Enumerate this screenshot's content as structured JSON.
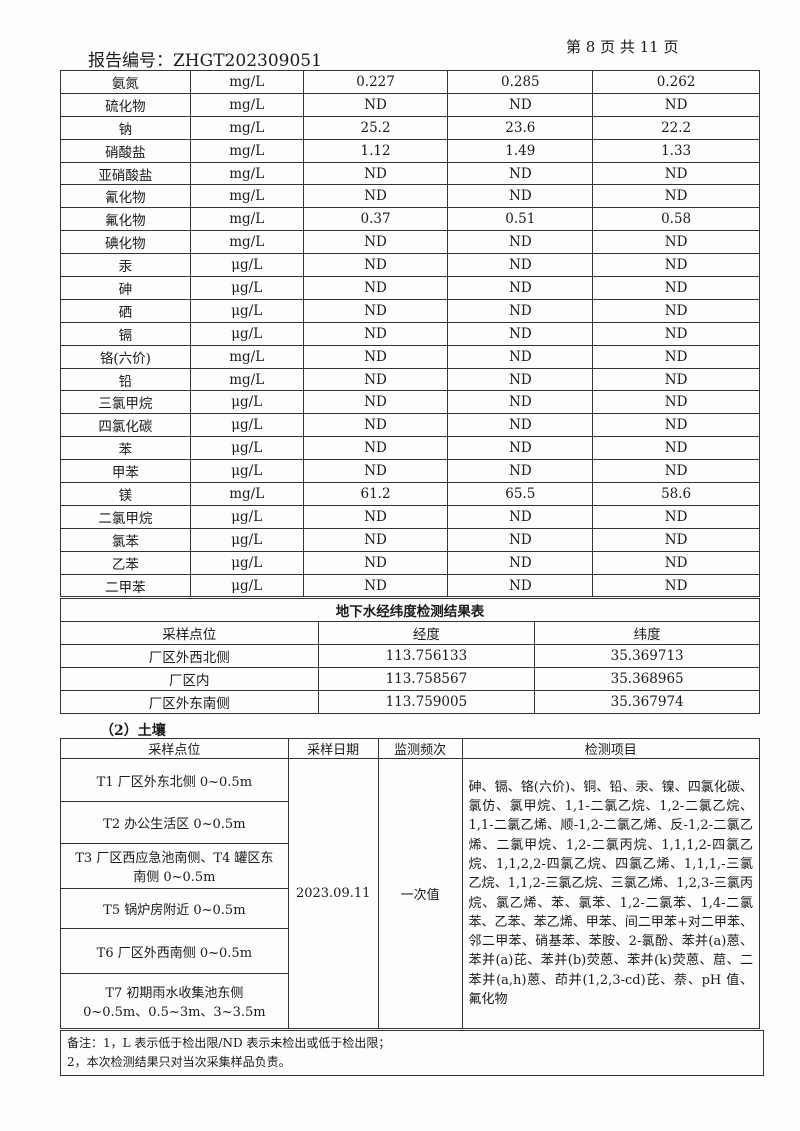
{
  "header": {
    "report_no": "报告编号：ZHGT202309051",
    "page": "第 8 页 共 11 页"
  },
  "water_rows": [
    [
      "氨氮",
      "mg/L",
      "0.227",
      "0.285",
      "0.262"
    ],
    [
      "硫化物",
      "mg/L",
      "ND",
      "ND",
      "ND"
    ],
    [
      "钠",
      "mg/L",
      "25.2",
      "23.6",
      "22.2"
    ],
    [
      "硝酸盐",
      "mg/L",
      "1.12",
      "1.49",
      "1.33"
    ],
    [
      "亚硝酸盐",
      "mg/L",
      "ND",
      "ND",
      "ND"
    ],
    [
      "氰化物",
      "mg/L",
      "ND",
      "ND",
      "ND"
    ],
    [
      "氟化物",
      "mg/L",
      "0.37",
      "0.51",
      "0.58"
    ],
    [
      "碘化物",
      "mg/L",
      "ND",
      "ND",
      "ND"
    ],
    [
      "汞",
      "μg/L",
      "ND",
      "ND",
      "ND"
    ],
    [
      "砷",
      "μg/L",
      "ND",
      "ND",
      "ND"
    ],
    [
      "硒",
      "μg/L",
      "ND",
      "ND",
      "ND"
    ],
    [
      "镉",
      "μg/L",
      "ND",
      "ND",
      "ND"
    ],
    [
      "铬(六价)",
      "mg/L",
      "ND",
      "ND",
      "ND"
    ],
    [
      "铅",
      "mg/L",
      "ND",
      "ND",
      "ND"
    ],
    [
      "三氯甲烷",
      "μg/L",
      "ND",
      "ND",
      "ND"
    ],
    [
      "四氯化碳",
      "μg/L",
      "ND",
      "ND",
      "ND"
    ],
    [
      "苯",
      "μg/L",
      "ND",
      "ND",
      "ND"
    ],
    [
      "甲苯",
      "μg/L",
      "ND",
      "ND",
      "ND"
    ],
    [
      "镁",
      "mg/L",
      "61.2",
      "65.5",
      "58.6"
    ],
    [
      "二氯甲烷",
      "μg/L",
      "ND",
      "ND",
      "ND"
    ],
    [
      "氯苯",
      "μg/L",
      "ND",
      "ND",
      "ND"
    ],
    [
      "乙苯",
      "μg/L",
      "ND",
      "ND",
      "ND"
    ],
    [
      "二甲苯",
      "μg/L",
      "ND",
      "ND",
      "ND"
    ]
  ],
  "coords": {
    "title": "地下水经纬度检测结果表",
    "headers": [
      "采样点位",
      "经度",
      "纬度"
    ],
    "rows": [
      [
        "厂区外西北侧",
        "113.756133",
        "35.369713"
      ],
      [
        "厂区内",
        "113.758567",
        "35.368965"
      ],
      [
        "厂区外东南侧",
        "113.759005",
        "35.367974"
      ]
    ]
  },
  "soil": {
    "section": "（2）土壤",
    "headers": [
      "采样点位",
      "采样日期",
      "监测频次",
      "检测项目"
    ],
    "points": [
      "T1 厂区外东北侧 0~0.5m",
      "T2 办公生活区 0~0.5m",
      "T3 厂区西应急池南侧、T4 罐区东南侧 0~0.5m",
      "T5 锅炉房附近 0~0.5m",
      "T6 厂区外西南侧 0~0.5m",
      "T7 初期雨水收集池东侧 0~0.5m、0.5~3m、3~3.5m"
    ],
    "date": "2023.09.11",
    "frequency": "一次值",
    "items": "砷、镉、铬(六价)、铜、铅、汞、镍、四氯化碳、氯仿、氯甲烷、1,1-二氯乙烷、1,2-二氯乙烷、1,1-二氯乙烯、顺-1,2-二氯乙烯、反-1,2-二氯乙烯、二氯甲烷、1,2-二氯丙烷、1,1,1,2-四氯乙烷、1,1,2,2-四氯乙烷、四氯乙烯、1,1,1,-三氯乙烷、1,1,2-三氯乙烷、三氯乙烯、1,2,3-三氯丙烷、氯乙烯、苯、氯苯、1,2-二氯苯、1,4-二氯苯、乙苯、苯乙烯、甲苯、间二甲苯+对二甲苯、邻二甲苯、硝基苯、苯胺、2-氯酚、苯并(a)蒽、苯并(a)芘、苯并(b)荧蒽、苯并(k)荧蒽、䓛、二苯并(a,h)蒽、茚并(1,2,3-cd)芘、萘、pH 值、氟化物"
  },
  "notes": [
    "备注：1，L 表示低于检出限/ND 表示未检出或低于检出限；",
    "2，本次检测结果只对当次采集样品负责。"
  ]
}
